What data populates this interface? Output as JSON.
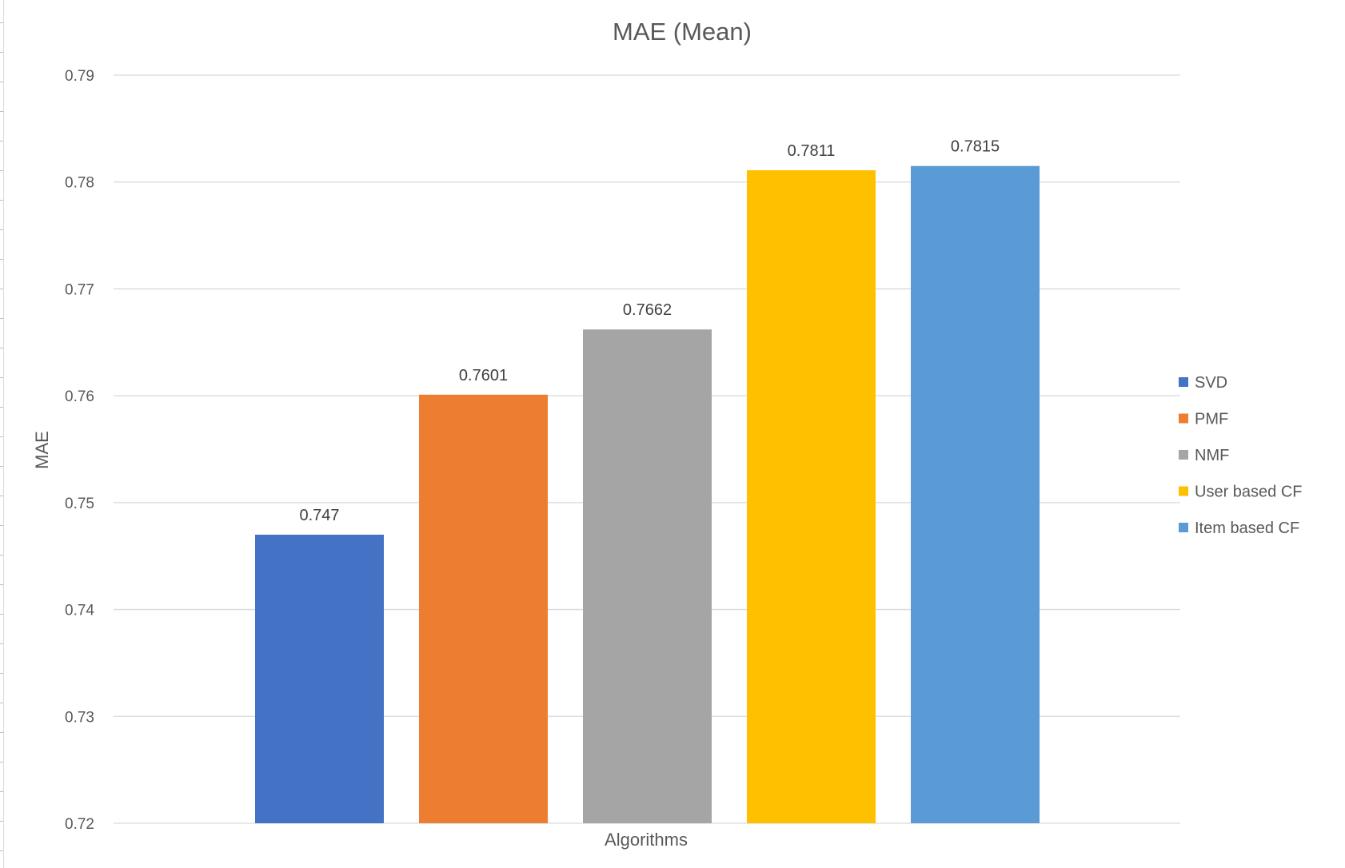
{
  "chart_data": {
    "type": "bar",
    "title": "MAE (Mean)",
    "xlabel": "Algorithms",
    "ylabel": "MAE",
    "ylim": [
      0.72,
      0.79
    ],
    "yticks": [
      "0.72",
      "0.73",
      "0.74",
      "0.75",
      "0.76",
      "0.77",
      "0.78",
      "0.79"
    ],
    "grid": true,
    "legend_position": "right",
    "series": [
      {
        "name": "SVD",
        "value": 0.747,
        "label": "0.747",
        "color": "#4472C4"
      },
      {
        "name": "PMF",
        "value": 0.7601,
        "label": "0.7601",
        "color": "#ED7D31"
      },
      {
        "name": "NMF",
        "value": 0.7662,
        "label": "0.7662",
        "color": "#A5A5A5"
      },
      {
        "name": "User based CF",
        "value": 0.7811,
        "label": "0.7811",
        "color": "#FFC000"
      },
      {
        "name": "Item based CF",
        "value": 0.7815,
        "label": "0.7815",
        "color": "#5B9BD5"
      }
    ]
  }
}
